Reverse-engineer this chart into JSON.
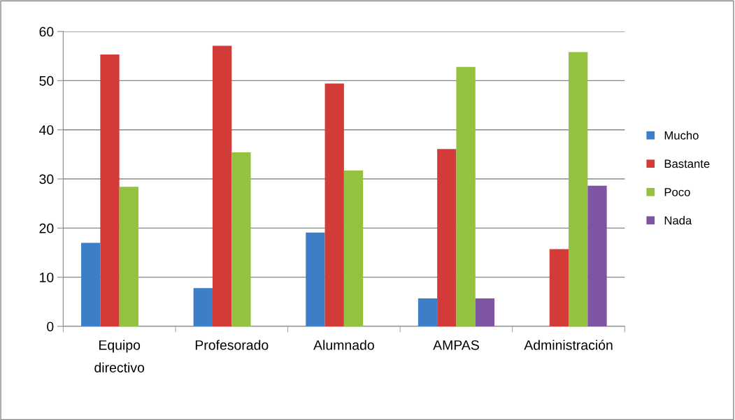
{
  "chart_data": {
    "type": "bar",
    "categories": [
      "Equipo\ndirectivo",
      "Profesorado",
      "Alumnado",
      "AMPAS",
      "Administración"
    ],
    "series": [
      {
        "name": "Mucho",
        "color": "#3c7fc7",
        "values": [
          17,
          7.8,
          19.1,
          5.7,
          0
        ]
      },
      {
        "name": "Bastante",
        "color": "#d23b38",
        "values": [
          55.3,
          57.1,
          49.4,
          36.1,
          15.7
        ]
      },
      {
        "name": "Poco",
        "color": "#94c23e",
        "values": [
          28.4,
          35.4,
          31.7,
          52.8,
          55.8
        ]
      },
      {
        "name": "Nada",
        "color": "#7e55a0",
        "values": [
          0,
          0,
          0,
          5.7,
          28.6
        ]
      }
    ],
    "ylim": [
      0,
      60
    ],
    "yticks": [
      0,
      10,
      20,
      30,
      40,
      50,
      60
    ],
    "grid": "y",
    "legend": "right"
  }
}
